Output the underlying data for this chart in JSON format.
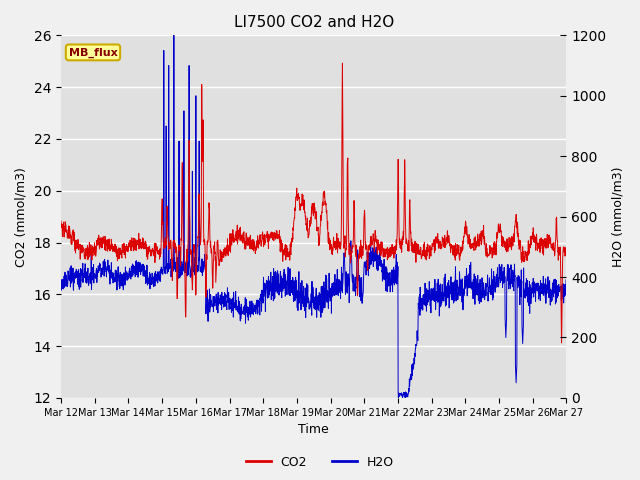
{
  "title": "LI7500 CO2 and H2O",
  "xlabel": "Time",
  "ylabel_left": "CO2 (mmol/m3)",
  "ylabel_right": "H2O (mmol/m3)",
  "ylim_left": [
    12,
    26
  ],
  "ylim_right": [
    0,
    1200
  ],
  "yticks_left": [
    12,
    14,
    16,
    18,
    20,
    22,
    24,
    26
  ],
  "yticks_right": [
    0,
    200,
    400,
    600,
    800,
    1000,
    1200
  ],
  "annotation_text": "MB_flux",
  "fig_bg_color": "#f0f0f0",
  "plot_bg_color": "#e0e0e0",
  "co2_color": "#dd0000",
  "h2o_color": "#0000cc",
  "legend_co2": "CO2",
  "legend_h2o": "H2O",
  "xtick_labels": [
    "Mar 12",
    "Mar 13",
    "Mar 14",
    "Mar 15",
    "Mar 16",
    "Mar 17",
    "Mar 18",
    "Mar 19",
    "Mar 20",
    "Mar 21",
    "Mar 22",
    "Mar 23",
    "Mar 24",
    "Mar 25",
    "Mar 26",
    "Mar 27"
  ],
  "n_days": 15,
  "seed": 7
}
